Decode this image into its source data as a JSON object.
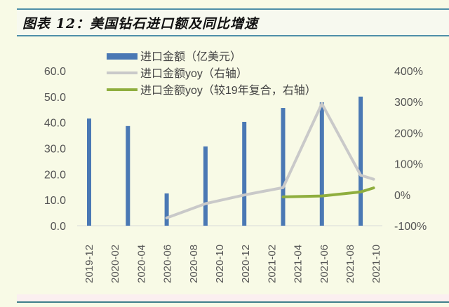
{
  "header": {
    "title": "图表 12：美国钻石进口额及同比增速"
  },
  "colors": {
    "background": "#f8fae6",
    "bar": "#4a78b4",
    "yoy_line": "#c9c9c9",
    "yoy_vs19_line": "#8fae3e",
    "title_rule": "#4e8fa8",
    "axis_text": "#555555"
  },
  "legend": {
    "items": [
      {
        "label": "进口金额（亿美元）",
        "type": "bar"
      },
      {
        "label": "进口金额yoy（右轴）",
        "type": "line"
      },
      {
        "label": "进口金额yoy（较19年复合，右轴）",
        "type": "line"
      }
    ]
  },
  "chart_data": {
    "type": "bar",
    "title": "美国钻石进口额及同比增速",
    "xlabel": "",
    "ylabel": "",
    "categories": [
      "2019-12",
      "2020-02",
      "2020-04",
      "2020-06",
      "2020-08",
      "2020-10",
      "2020-12",
      "2021-02",
      "2021-04",
      "2021-06",
      "2021-08",
      "2021-10"
    ],
    "x_points": [
      "2019-12",
      "2020-03",
      "2020-06",
      "2020-09",
      "2020-12",
      "2021-03",
      "2021-06",
      "2021-09",
      "2021-10"
    ],
    "ylim": [
      0,
      60
    ],
    "yticks": [
      "0.0",
      "10.0",
      "20.0",
      "30.0",
      "40.0",
      "50.0",
      "60.0"
    ],
    "y2lim": [
      -100,
      400
    ],
    "y2ticks": [
      "-100%",
      "0%",
      "100%",
      "200%",
      "300%",
      "400%"
    ],
    "grid": false,
    "legend_position": "top",
    "series": [
      {
        "name": "进口金额（亿美元）",
        "type": "bar",
        "axis": "left",
        "x": [
          "2019-12",
          "2020-03",
          "2020-06",
          "2020-09",
          "2020-12",
          "2021-03",
          "2021-06",
          "2021-09"
        ],
        "values": [
          41.5,
          38.6,
          12.5,
          30.7,
          40.2,
          45.6,
          47.8,
          50.0
        ]
      },
      {
        "name": "进口金额yoy（右轴）",
        "type": "line",
        "axis": "right",
        "x": [
          "2020-06",
          "2020-09",
          "2020-12",
          "2021-03",
          "2021-06",
          "2021-09",
          "2021-10"
        ],
        "values": [
          -75,
          -29,
          -1,
          23,
          294,
          63,
          50
        ]
      },
      {
        "name": "进口金额yoy（较19年复合，右轴）",
        "type": "line",
        "axis": "right",
        "x": [
          "2021-03",
          "2021-06",
          "2021-09",
          "2021-10"
        ],
        "values": [
          -7,
          -4,
          9,
          22
        ]
      }
    ]
  }
}
